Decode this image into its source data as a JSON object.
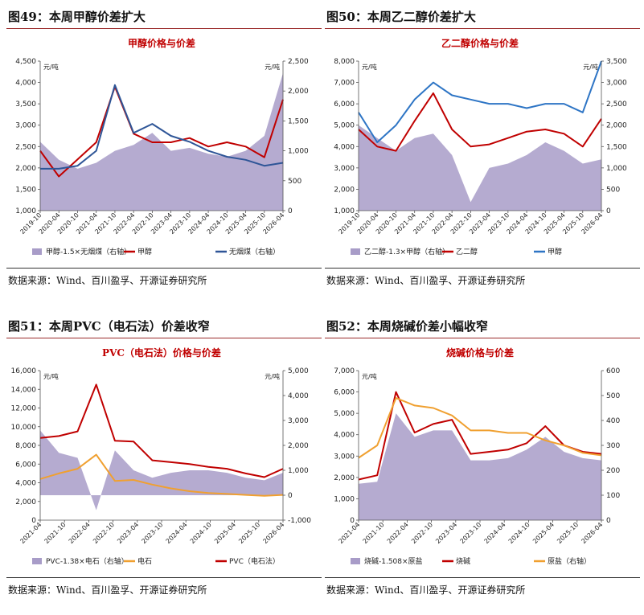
{
  "panels": [
    {
      "figure_title": "图49：本周甲醇价差扩大",
      "source": "数据来源：Wind、百川盈孚、开源证券研究所"
    },
    {
      "figure_title": "图50：本周乙二醇价差扩大",
      "source": "数据来源：Wind、百川盈孚、开源证券研究所"
    },
    {
      "figure_title": "图51：本周PVC（电石法）价差收窄",
      "source": "数据来源：Wind、百川盈孚、开源证券研究所"
    },
    {
      "figure_title": "图52：本周烧碱价差小幅收窄",
      "source": "数据来源：Wind、百川盈孚、开源证券研究所"
    }
  ],
  "chart_data": [
    {
      "type": "line",
      "title": "甲醇价格与价差",
      "left_unit": "元/吨",
      "right_unit": "元/吨",
      "x": [
        "2019-10",
        "2020-04",
        "2020-10",
        "2021-04",
        "2021-10",
        "2022-04",
        "2022-10",
        "2023-04",
        "2023-10",
        "2024-04",
        "2024-10",
        "2025-04",
        "2025-10",
        "2026-04"
      ],
      "xticks": [
        "2019-10",
        "2020-04",
        "2020-10",
        "2021-04",
        "2021-10",
        "2022-04",
        "2022-10",
        "2023-04",
        "2023-10",
        "2024-04",
        "2024-10",
        "2025-04",
        "2025-10",
        "2026-04"
      ],
      "left_axis": {
        "min": 1000,
        "max": 4500,
        "ticks": [
          "1,000",
          "1,500",
          "2,000",
          "2,500",
          "3,000",
          "3,500",
          "4,000",
          "4,500"
        ]
      },
      "right_axis": {
        "min": 0,
        "max": 2500,
        "ticks": [
          "0",
          "500",
          "1,000",
          "1,500",
          "2,000",
          "2,500"
        ]
      },
      "series": [
        {
          "name": "甲醇-1.5×无烟煤（右轴）",
          "kind": "area",
          "axis": "right",
          "color": "#a89cc8",
          "values": [
            1150,
            850,
            700,
            800,
            1000,
            1100,
            1300,
            1000,
            1050,
            950,
            900,
            1000,
            1250,
            2300
          ]
        },
        {
          "name": "甲醇",
          "kind": "line",
          "axis": "left",
          "color": "#c00000",
          "values": [
            2400,
            1800,
            2200,
            2600,
            3900,
            2800,
            2600,
            2600,
            2700,
            2500,
            2600,
            2500,
            2250,
            3600
          ]
        },
        {
          "name": "无烟煤（右轴）",
          "kind": "line",
          "axis": "right",
          "color": "#2e5597",
          "values": [
            700,
            700,
            750,
            1000,
            2100,
            1300,
            1450,
            1250,
            1150,
            1000,
            900,
            850,
            750,
            800
          ]
        }
      ]
    },
    {
      "type": "line",
      "title": "乙二醇价格与价差",
      "left_unit": "元/吨",
      "right_unit": "元/吨",
      "x": [
        "2019-10",
        "2020-04",
        "2020-10",
        "2021-04",
        "2021-10",
        "2022-04",
        "2022-10",
        "2023-04",
        "2023-10",
        "2024-04",
        "2024-10",
        "2025-04",
        "2025-10",
        "2026-04"
      ],
      "xticks": [
        "2019-10",
        "2020-04",
        "2020-10",
        "2021-04",
        "2021-10",
        "2022-04",
        "2022-10",
        "2023-04",
        "2023-10",
        "2024-04",
        "2024-10",
        "2025-04",
        "2025-10",
        "2026-04"
      ],
      "left_axis": {
        "min": 1000,
        "max": 8000,
        "ticks": [
          "1,000",
          "2,000",
          "3,000",
          "4,000",
          "5,000",
          "6,000",
          "7,000",
          "8,000"
        ]
      },
      "right_axis": {
        "min": 0,
        "max": 3500,
        "ticks": [
          "0",
          "500",
          "1,000",
          "1,500",
          "2,000",
          "2,500",
          "3,000",
          "3,500"
        ]
      },
      "series": [
        {
          "name": "乙二醇-1.3×甲醇（右轴）",
          "kind": "area",
          "axis": "right",
          "color": "#a89cc8",
          "values": [
            2000,
            1700,
            1400,
            1700,
            1800,
            1300,
            200,
            1000,
            1100,
            1300,
            1600,
            1400,
            1100,
            1200
          ]
        },
        {
          "name": "乙二醇",
          "kind": "line",
          "axis": "left",
          "color": "#c00000",
          "values": [
            4800,
            4000,
            3800,
            5200,
            6500,
            4800,
            4000,
            4100,
            4400,
            4700,
            4800,
            4600,
            4000,
            5300
          ]
        },
        {
          "name": "甲醇",
          "kind": "line",
          "axis": "right",
          "color": "#2e75c5",
          "values": [
            2300,
            1600,
            2000,
            2600,
            3000,
            2700,
            2600,
            2500,
            2500,
            2400,
            2500,
            2500,
            2300,
            3500
          ]
        }
      ]
    },
    {
      "type": "line",
      "title": "PVC（电石法）价格与价差",
      "left_unit": "元/吨",
      "right_unit": "元/吨",
      "x": [
        "2021-04",
        "2021-06",
        "2021-08",
        "2021-10",
        "2021-12",
        "2022-04",
        "2022-10",
        "2023-04",
        "2023-10",
        "2024-04",
        "2024-10",
        "2025-04",
        "2025-10",
        "2026-04"
      ],
      "xticks": [
        "2021-04",
        "2021-10",
        "2022-04",
        "2022-10",
        "2023-04",
        "2023-10",
        "2024-04",
        "2024-10",
        "2025-04",
        "2025-10",
        "2026-04"
      ],
      "left_axis": {
        "min": 0,
        "max": 16000,
        "ticks": [
          "0",
          "2,000",
          "4,000",
          "6,000",
          "8,000",
          "10,000",
          "12,000",
          "14,000",
          "16,000"
        ]
      },
      "right_axis": {
        "min": -1000,
        "max": 5000,
        "ticks": [
          "-1,000",
          "0",
          "1,000",
          "2,000",
          "3,000",
          "4,000",
          "5,000"
        ]
      },
      "series": [
        {
          "name": "PVC-1.38×电石（右轴）",
          "kind": "area",
          "axis": "right",
          "color": "#a89cc8",
          "values": [
            2600,
            1700,
            1500,
            -600,
            1800,
            1000,
            700,
            900,
            1000,
            1000,
            900,
            700,
            600,
            900
          ]
        },
        {
          "name": "电石",
          "kind": "line",
          "axis": "left",
          "color": "#f0a030",
          "values": [
            4400,
            5000,
            5500,
            7000,
            4200,
            4300,
            3800,
            3400,
            3100,
            2900,
            2800,
            2700,
            2600,
            2700
          ]
        },
        {
          "name": "PVC（电石法）",
          "kind": "line",
          "axis": "left",
          "color": "#c00000",
          "values": [
            8800,
            9000,
            9500,
            14500,
            8500,
            8400,
            6400,
            6200,
            6000,
            5700,
            5500,
            5000,
            4600,
            5500
          ]
        }
      ]
    },
    {
      "type": "line",
      "title": "烧碱价格与价差",
      "left_unit": "元/吨",
      "right_unit": "",
      "x": [
        "2021-04",
        "2021-07",
        "2021-10",
        "2022-01",
        "2022-04",
        "2022-10",
        "2023-04",
        "2023-10",
        "2024-04",
        "2024-10",
        "2025-01",
        "2025-04",
        "2025-10",
        "2026-04"
      ],
      "xticks": [
        "2021-04",
        "2021-10",
        "2022-04",
        "2022-10",
        "2023-04",
        "2023-10",
        "2024-04",
        "2024-10",
        "2025-04",
        "2025-10",
        "2026-04"
      ],
      "left_axis": {
        "min": 0,
        "max": 7000,
        "ticks": [
          "0",
          "1,000",
          "2,000",
          "3,000",
          "4,000",
          "5,000",
          "6,000",
          "7,000"
        ]
      },
      "right_axis": {
        "min": 0,
        "max": 600,
        "ticks": [
          "0",
          "100",
          "200",
          "300",
          "400",
          "500",
          "600"
        ]
      },
      "series": [
        {
          "name": "烧碱-1.508×原盐",
          "kind": "area",
          "axis": "left",
          "color": "#a89cc8",
          "values": [
            1700,
            1800,
            5000,
            3900,
            4200,
            4200,
            2800,
            2800,
            2900,
            3300,
            3900,
            3200,
            2900,
            2800
          ]
        },
        {
          "name": "烧碱",
          "kind": "line",
          "axis": "left",
          "color": "#c00000",
          "values": [
            1900,
            2100,
            6000,
            4100,
            4500,
            4700,
            3100,
            3200,
            3300,
            3600,
            4400,
            3500,
            3200,
            3100
          ]
        },
        {
          "name": "原盐（右轴）",
          "kind": "line",
          "axis": "right",
          "color": "#f0a030",
          "values": [
            250,
            300,
            490,
            460,
            450,
            420,
            360,
            360,
            350,
            350,
            320,
            300,
            270,
            260
          ]
        }
      ]
    }
  ]
}
